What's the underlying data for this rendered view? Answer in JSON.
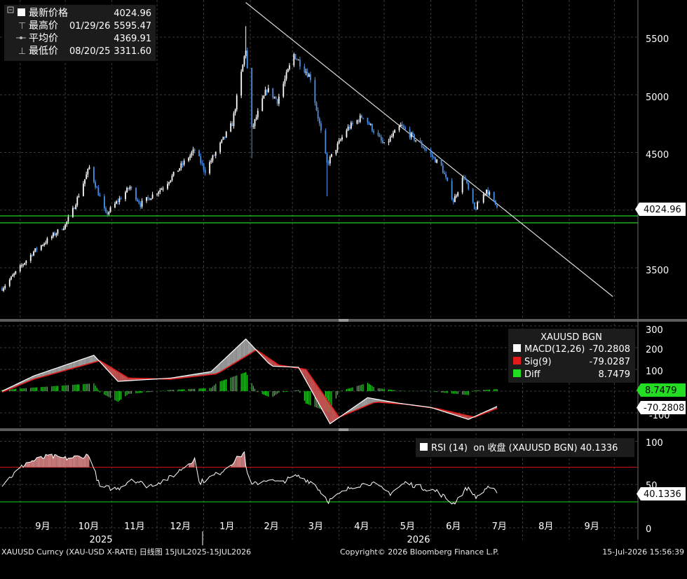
{
  "colors": {
    "background": "#000000",
    "grid": "#3a3a3a",
    "text": "#ffffff",
    "candle_up": "#ffffff",
    "candle_down": "#4b8fe3",
    "support_green": "#1fd11f",
    "trendline": "#dddddd",
    "macd": "#ffffff",
    "signal": "#e01b1b",
    "diff": "#22dd22",
    "rsi_line": "#ffffff",
    "rsi_upper": "#c01010",
    "rsi_lower": "#16c016",
    "overbought_fill": "#c77a7a",
    "oversold_fill": "#4f4f4f"
  },
  "legend_price": [
    {
      "icon": "white-square-icon",
      "label": "最新价格",
      "date": "",
      "value": "4024.96"
    },
    {
      "icon": "high-marker-icon",
      "label": "最高价",
      "date": "01/29/26",
      "value": "5595.47"
    },
    {
      "icon": "avg-marker-icon",
      "label": "平均价",
      "date": "",
      "value": "4369.91"
    },
    {
      "icon": "low-marker-icon",
      "label": "最低价",
      "date": "08/20/25",
      "value": "3311.60"
    }
  ],
  "legend_macd": {
    "title": "XAUUSD BGN",
    "rows": [
      {
        "icon": "white-square-icon",
        "label": "MACD(12,26)",
        "value": "-70.2808",
        "color": "#ffffff"
      },
      {
        "icon": "red-square-icon",
        "label": "Sig(9)",
        "value": "-79.0287",
        "color": "#e01b1b"
      },
      {
        "icon": "green-square-icon",
        "label": "Diff",
        "value": "8.7479",
        "color": "#22dd22"
      }
    ]
  },
  "legend_rsi": {
    "icon": "white-square-icon",
    "label": "RSI (14)  on 收盘 (XAUUSD BGN) 40.1336"
  },
  "price_axis": {
    "ticks": [
      "5500",
      "5000",
      "4500",
      "3500"
    ],
    "last_label": "4024.96"
  },
  "macd_axis": {
    "ticks": [
      "300",
      "200",
      "100",
      "-100"
    ],
    "diff_label": "8.7479",
    "macd_label": "-70.2808"
  },
  "rsi_axis": {
    "ticks": [
      "100",
      "50",
      "0"
    ],
    "last_label": "40.1336"
  },
  "x_axis": {
    "months": [
      "9月",
      "10月",
      "11月",
      "12月",
      "1月",
      "2月",
      "3月",
      "4月",
      "5月",
      "6月",
      "7月",
      "8月",
      "9月"
    ],
    "years": [
      "2025",
      "2026"
    ]
  },
  "footer": {
    "left": "XAUUSD Curncy (XAU-USD X-RATE) 日线图 15JUL2025-15JUL2026",
    "center": "Copyright© 2026 Bloomberg Finance L.P.",
    "right": "15-Jul-2026 15:56:39"
  },
  "chart_data": [
    {
      "type": "candlestick",
      "title": "XAUUSD Curncy (XAU-USD X-RATE) 日线图 15JUL2025-15JUL2026",
      "ylim": [
        3200,
        5800
      ],
      "anchors": [
        {
          "t": "2025-08-20",
          "v": 3320
        },
        {
          "t": "2025-09-10",
          "v": 3640
        },
        {
          "t": "2025-10-01",
          "v": 3870
        },
        {
          "t": "2025-10-06",
          "v": 4000
        },
        {
          "t": "2025-10-17",
          "v": 4370
        },
        {
          "t": "2025-10-28",
          "v": 3960
        },
        {
          "t": "2025-11-13",
          "v": 4200
        },
        {
          "t": "2025-11-20",
          "v": 4050
        },
        {
          "t": "2025-12-05",
          "v": 4200
        },
        {
          "t": "2025-12-26",
          "v": 4520
        },
        {
          "t": "2026-01-02",
          "v": 4340
        },
        {
          "t": "2026-01-20",
          "v": 4750
        },
        {
          "t": "2026-01-29",
          "v": 5400
        },
        {
          "t": "2026-02-02",
          "v": 4700
        },
        {
          "t": "2026-02-12",
          "v": 5050
        },
        {
          "t": "2026-02-19",
          "v": 4950
        },
        {
          "t": "2026-03-02",
          "v": 5350
        },
        {
          "t": "2026-03-13",
          "v": 5150
        },
        {
          "t": "2026-03-24",
          "v": 4400
        },
        {
          "t": "2026-04-06",
          "v": 4700
        },
        {
          "t": "2026-04-17",
          "v": 4820
        },
        {
          "t": "2026-05-01",
          "v": 4560
        },
        {
          "t": "2026-05-12",
          "v": 4730
        },
        {
          "t": "2026-05-26",
          "v": 4560
        },
        {
          "t": "2026-06-08",
          "v": 4380
        },
        {
          "t": "2026-06-16",
          "v": 4080
        },
        {
          "t": "2026-06-23",
          "v": 4300
        },
        {
          "t": "2026-06-30",
          "v": 4000
        },
        {
          "t": "2026-07-08",
          "v": 4180
        },
        {
          "t": "2026-07-15",
          "v": 4024.96
        }
      ],
      "high": {
        "date": "01/29/26",
        "value": 5595.47
      },
      "low": {
        "date": "08/20/25",
        "value": 3311.6
      },
      "average": 4369.91,
      "last": 4024.96,
      "support_levels": [
        3950,
        3890
      ],
      "trendline": [
        {
          "t": "2026-01-29",
          "v": 5800
        },
        {
          "t": "2026-09-30",
          "v": 3250
        }
      ]
    },
    {
      "type": "line",
      "name": "MACD",
      "ylim": [
        -200,
        330
      ],
      "series": [
        {
          "name": "MACD(12,26)",
          "last": -70.2808,
          "anchors": [
            {
              "t": "2025-08-20",
              "v": 0
            },
            {
              "t": "2025-09-10",
              "v": 70
            },
            {
              "t": "2025-10-20",
              "v": 165
            },
            {
              "t": "2025-11-05",
              "v": 45
            },
            {
              "t": "2025-12-10",
              "v": 60
            },
            {
              "t": "2026-01-06",
              "v": 90
            },
            {
              "t": "2026-01-29",
              "v": 240
            },
            {
              "t": "2026-02-15",
              "v": 115
            },
            {
              "t": "2026-03-05",
              "v": 110
            },
            {
              "t": "2026-03-26",
              "v": -150
            },
            {
              "t": "2026-04-20",
              "v": -30
            },
            {
              "t": "2026-05-10",
              "v": -55
            },
            {
              "t": "2026-06-01",
              "v": -75
            },
            {
              "t": "2026-06-26",
              "v": -130
            },
            {
              "t": "2026-07-15",
              "v": -70.28
            }
          ]
        },
        {
          "name": "Sig(9)",
          "last": -79.0287,
          "anchors": [
            {
              "t": "2025-08-20",
              "v": -5
            },
            {
              "t": "2025-09-10",
              "v": 55
            },
            {
              "t": "2025-10-24",
              "v": 140
            },
            {
              "t": "2025-11-12",
              "v": 60
            },
            {
              "t": "2025-12-10",
              "v": 55
            },
            {
              "t": "2026-01-10",
              "v": 80
            },
            {
              "t": "2026-02-05",
              "v": 190
            },
            {
              "t": "2026-02-20",
              "v": 120
            },
            {
              "t": "2026-03-10",
              "v": 100
            },
            {
              "t": "2026-04-01",
              "v": -120
            },
            {
              "t": "2026-04-25",
              "v": -50
            },
            {
              "t": "2026-05-15",
              "v": -60
            },
            {
              "t": "2026-06-05",
              "v": -80
            },
            {
              "t": "2026-06-30",
              "v": -120
            },
            {
              "t": "2026-07-15",
              "v": -79.03
            }
          ]
        },
        {
          "name": "Diff",
          "last": 8.7479
        }
      ]
    },
    {
      "type": "line",
      "name": "RSI (14)",
      "ylim": [
        -10,
        110
      ],
      "levels": [
        70,
        30
      ],
      "last": 40.1336,
      "anchors": [
        {
          "t": "2025-08-20",
          "v": 50
        },
        {
          "t": "2025-09-05",
          "v": 75
        },
        {
          "t": "2025-09-20",
          "v": 83
        },
        {
          "t": "2025-10-01",
          "v": 80
        },
        {
          "t": "2025-10-17",
          "v": 84
        },
        {
          "t": "2025-10-24",
          "v": 47
        },
        {
          "t": "2025-11-05",
          "v": 45
        },
        {
          "t": "2025-11-14",
          "v": 57
        },
        {
          "t": "2025-11-25",
          "v": 48
        },
        {
          "t": "2025-12-10",
          "v": 58
        },
        {
          "t": "2025-12-26",
          "v": 80
        },
        {
          "t": "2025-12-29",
          "v": 52
        },
        {
          "t": "2026-01-12",
          "v": 64
        },
        {
          "t": "2026-01-28",
          "v": 87
        },
        {
          "t": "2026-01-31",
          "v": 48
        },
        {
          "t": "2026-02-12",
          "v": 56
        },
        {
          "t": "2026-02-20",
          "v": 52
        },
        {
          "t": "2026-03-04",
          "v": 60
        },
        {
          "t": "2026-03-15",
          "v": 52
        },
        {
          "t": "2026-03-25",
          "v": 31
        },
        {
          "t": "2026-04-10",
          "v": 48
        },
        {
          "t": "2026-04-22",
          "v": 52
        },
        {
          "t": "2026-05-05",
          "v": 40
        },
        {
          "t": "2026-05-15",
          "v": 52
        },
        {
          "t": "2026-06-05",
          "v": 42
        },
        {
          "t": "2026-06-16",
          "v": 28
        },
        {
          "t": "2026-06-25",
          "v": 46
        },
        {
          "t": "2026-07-02",
          "v": 35
        },
        {
          "t": "2026-07-09",
          "v": 48
        },
        {
          "t": "2026-07-15",
          "v": 40.13
        }
      ]
    }
  ]
}
